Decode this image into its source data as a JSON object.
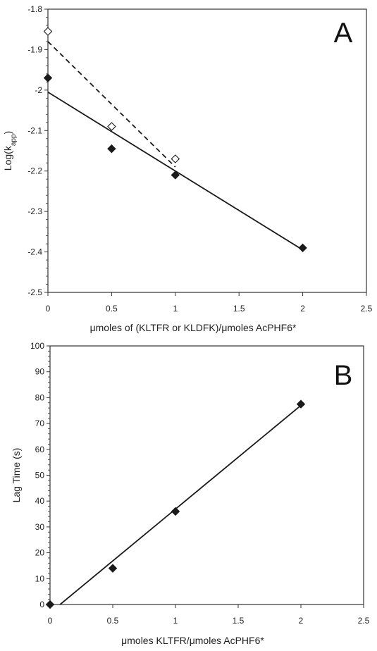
{
  "chart_data": [
    {
      "type": "scatter",
      "panel_label": "A",
      "ylabel": "Log(k",
      "ylabel_sub": "app",
      "ylabel_close": ")",
      "xlabel_mu": "μ",
      "xlabel": "moles of (KLTFR or KLDFK)/",
      "xlabel_mu2": "μ",
      "xlabel_tail": "moles AcPHF6*",
      "xlim": [
        0,
        2.5
      ],
      "ylim": [
        -2.5,
        -1.8
      ],
      "xticks": [
        "0",
        "0.5",
        "1",
        "1.5",
        "2",
        "2.5"
      ],
      "yticks": [
        "-2.5",
        "-2.4",
        "-2.3",
        "-2.2",
        "-2.1",
        "-2",
        "-1.9",
        "-1.8"
      ],
      "grid": false,
      "series": [
        {
          "marker": "filled-diamond",
          "color": "#1a1a1a",
          "line_style": "solid",
          "points": [
            [
              0,
              -1.97
            ],
            [
              0.5,
              -2.145
            ],
            [
              1,
              -2.21
            ],
            [
              2,
              -2.39
            ]
          ],
          "fit": [
            [
              0,
              -2.005
            ],
            [
              2,
              -2.395
            ]
          ]
        },
        {
          "marker": "open-diamond",
          "color": "#1a1a1a",
          "line_style": "dashed",
          "points": [
            [
              0,
              -1.855
            ],
            [
              0.5,
              -2.09
            ],
            [
              1,
              -2.17
            ]
          ],
          "fit": [
            [
              0,
              -1.88
            ],
            [
              1,
              -2.19
            ]
          ]
        }
      ]
    },
    {
      "type": "scatter",
      "panel_label": "B",
      "ylabel": "Lag Time (s)",
      "xlabel_mu": "μ",
      "xlabel": "moles KLTFR/",
      "xlabel_mu2": "μ",
      "xlabel_tail": "moles AcPHF6*",
      "xlim": [
        0,
        2.5
      ],
      "ylim": [
        0,
        100
      ],
      "xticks": [
        "0",
        "0.5",
        "1",
        "1.5",
        "2",
        "2.5"
      ],
      "yticks": [
        "0",
        "10",
        "20",
        "30",
        "40",
        "50",
        "60",
        "70",
        "80",
        "90",
        "100"
      ],
      "grid": false,
      "series": [
        {
          "marker": "filled-diamond",
          "color": "#1a1a1a",
          "line_style": "solid",
          "points": [
            [
              0,
              0
            ],
            [
              0.5,
              14
            ],
            [
              1,
              36
            ],
            [
              2,
              77.5
            ]
          ],
          "fit": [
            [
              0.08,
              0
            ],
            [
              2,
              77
            ]
          ]
        }
      ]
    }
  ]
}
